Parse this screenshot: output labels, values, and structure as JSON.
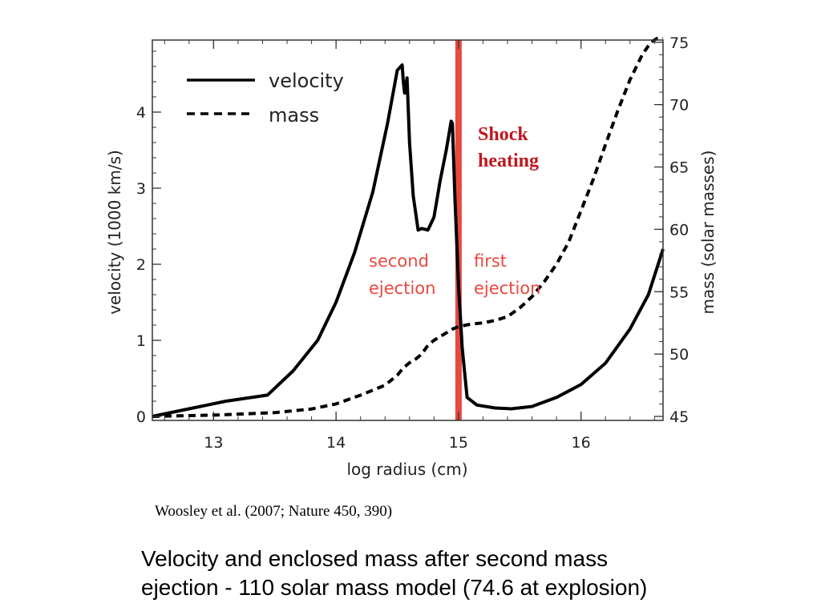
{
  "chart_data": {
    "type": "line",
    "xlabel": "log radius (cm)",
    "ylabel": "velocity (1000 km/s)",
    "ylabel_right": "mass (solar masses)",
    "xlim": [
      12.5,
      16.67
    ],
    "ylim": [
      0,
      5
    ],
    "ylim_right": [
      45,
      75.5
    ],
    "x_ticks": [
      13,
      14,
      15,
      16
    ],
    "x_tick_labels": [
      "13",
      "14",
      "15",
      "16"
    ],
    "y_ticks": [
      0,
      1,
      2,
      3,
      4
    ],
    "y_tick_labels": [
      "0",
      "1",
      "2",
      "3",
      "4"
    ],
    "y_right_ticks": [
      45,
      50,
      55,
      60,
      65,
      70,
      75
    ],
    "y_right_tick_labels": [
      "45",
      "50",
      "55",
      "60",
      "65",
      "70",
      "75"
    ],
    "grid": false,
    "legend_position": "top-left",
    "series": [
      {
        "name": "velocity",
        "axis": "left",
        "style": "solid",
        "x": [
          12.5,
          12.8,
          13.1,
          13.44,
          13.65,
          13.85,
          14.0,
          14.15,
          14.3,
          14.42,
          14.5,
          14.54,
          14.55,
          14.56,
          14.58,
          14.6,
          14.63,
          14.67,
          14.7,
          14.75,
          14.8,
          14.85,
          14.9,
          14.94,
          14.95,
          14.97,
          15.0,
          15.03,
          15.07,
          15.15,
          15.3,
          15.43,
          15.6,
          15.8,
          16.0,
          16.2,
          16.4,
          16.55,
          16.67
        ],
        "y": [
          0.0,
          0.1,
          0.2,
          0.28,
          0.6,
          1.0,
          1.5,
          2.15,
          2.95,
          3.85,
          4.55,
          4.62,
          4.38,
          4.25,
          4.45,
          3.6,
          2.9,
          2.45,
          2.47,
          2.45,
          2.62,
          3.1,
          3.5,
          3.88,
          3.85,
          2.9,
          1.72,
          0.9,
          0.25,
          0.15,
          0.11,
          0.1,
          0.13,
          0.25,
          0.42,
          0.7,
          1.15,
          1.6,
          2.2
        ]
      },
      {
        "name": "mass",
        "axis": "right",
        "style": "dashed",
        "x": [
          12.5,
          13.0,
          13.5,
          13.8,
          14.0,
          14.2,
          14.4,
          14.5,
          14.55,
          14.6,
          14.65,
          14.7,
          14.75,
          14.8,
          14.85,
          14.9,
          14.95,
          15.0,
          15.1,
          15.2,
          15.3,
          15.4,
          15.5,
          15.6,
          15.7,
          15.8,
          15.9,
          16.0,
          16.1,
          16.2,
          16.3,
          16.4,
          16.5,
          16.57,
          16.62,
          16.67
        ],
        "y": [
          45.0,
          45.1,
          45.3,
          45.6,
          46.0,
          46.7,
          47.5,
          48.3,
          48.9,
          49.3,
          49.6,
          50.0,
          50.7,
          51.1,
          51.4,
          51.7,
          52.0,
          52.2,
          52.4,
          52.5,
          52.7,
          53.0,
          53.7,
          54.6,
          55.8,
          57.2,
          59.0,
          61.5,
          64.0,
          66.8,
          69.5,
          72.0,
          74.0,
          75.0,
          75.3,
          75.3
        ]
      }
    ],
    "annotations": {
      "second_ejection": [
        "second",
        "ejection"
      ],
      "first_ejection": [
        "first",
        "ejection"
      ],
      "shock_heating": [
        "Shock",
        "heating"
      ],
      "shock_x": 15.0,
      "shock_color": "#e8493f"
    }
  },
  "citation": "Woosley et al. (2007; Nature 450, 390)",
  "caption": {
    "line1": "Velocity and enclosed mass after second mass",
    "line2": "ejection - 110 solar mass model (74.6 at explosion)"
  }
}
